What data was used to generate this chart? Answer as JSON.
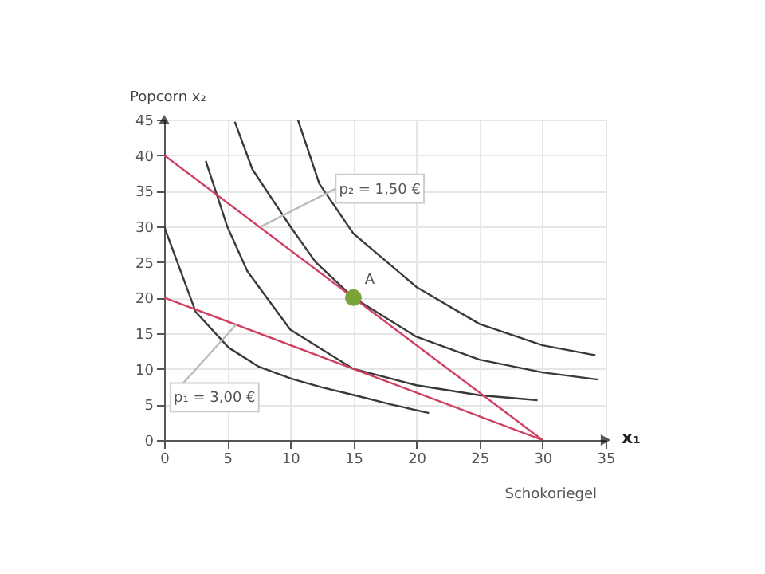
{
  "chart_data": {
    "type": "line",
    "xlabel": "Schokoriegel",
    "ylabel": "Popcorn x₂",
    "xlim": [
      0,
      35
    ],
    "ylim": [
      0,
      45
    ],
    "xticks": [
      0,
      5,
      10,
      15,
      20,
      25,
      30,
      35
    ],
    "yticks": [
      0,
      5,
      10,
      15,
      20,
      25,
      30,
      35,
      40,
      45
    ],
    "grid": true,
    "series": [
      {
        "color": "#3a3a3a",
        "x": [
          0,
          2.5,
          5.1,
          7.5,
          10.1,
          12.5,
          15.1,
          18,
          21
        ],
        "values": [
          30,
          18,
          13,
          10.3,
          8.6,
          7.4,
          6.3,
          5,
          3.8
        ]
      },
      {
        "color": "#3a3a3a",
        "x": [
          3.3,
          5,
          6.6,
          10,
          15,
          20,
          25,
          29.6
        ],
        "values": [
          39.2,
          30,
          23.7,
          15.5,
          10,
          7.7,
          6.3,
          5.6
        ]
      },
      {
        "color": "#3a3a3a",
        "x": [
          5.6,
          7,
          10,
          12,
          15,
          20,
          25,
          30,
          34.4
        ],
        "values": [
          44.7,
          38,
          30,
          25,
          20,
          14.5,
          11.3,
          9.5,
          8.5
        ]
      },
      {
        "color": "#3a3a3a",
        "x": [
          10.6,
          12.3,
          15,
          20,
          25,
          30,
          34.2
        ],
        "values": [
          45,
          36,
          29,
          21.5,
          16.3,
          13.3,
          11.9
        ]
      },
      {
        "color": "#d04060",
        "x": [
          0,
          30
        ],
        "values": [
          40,
          0
        ]
      },
      {
        "color": "#d04060",
        "x": [
          0,
          30
        ],
        "values": [
          20,
          0
        ]
      },
      {
        "type": "scatter",
        "marker": "circle",
        "color": "#7aa33a",
        "x": [
          15
        ],
        "values": [
          20
        ]
      }
    ],
    "annotations": [
      {
        "text": "A",
        "x": 15,
        "y": 20
      },
      {
        "text": "p₂ = 1,50 €",
        "x": 7.6,
        "y": 29.9
      },
      {
        "text": "p₁ = 3,00 €",
        "x": 5.7,
        "y": 16.2
      },
      "x₁"
    ]
  }
}
